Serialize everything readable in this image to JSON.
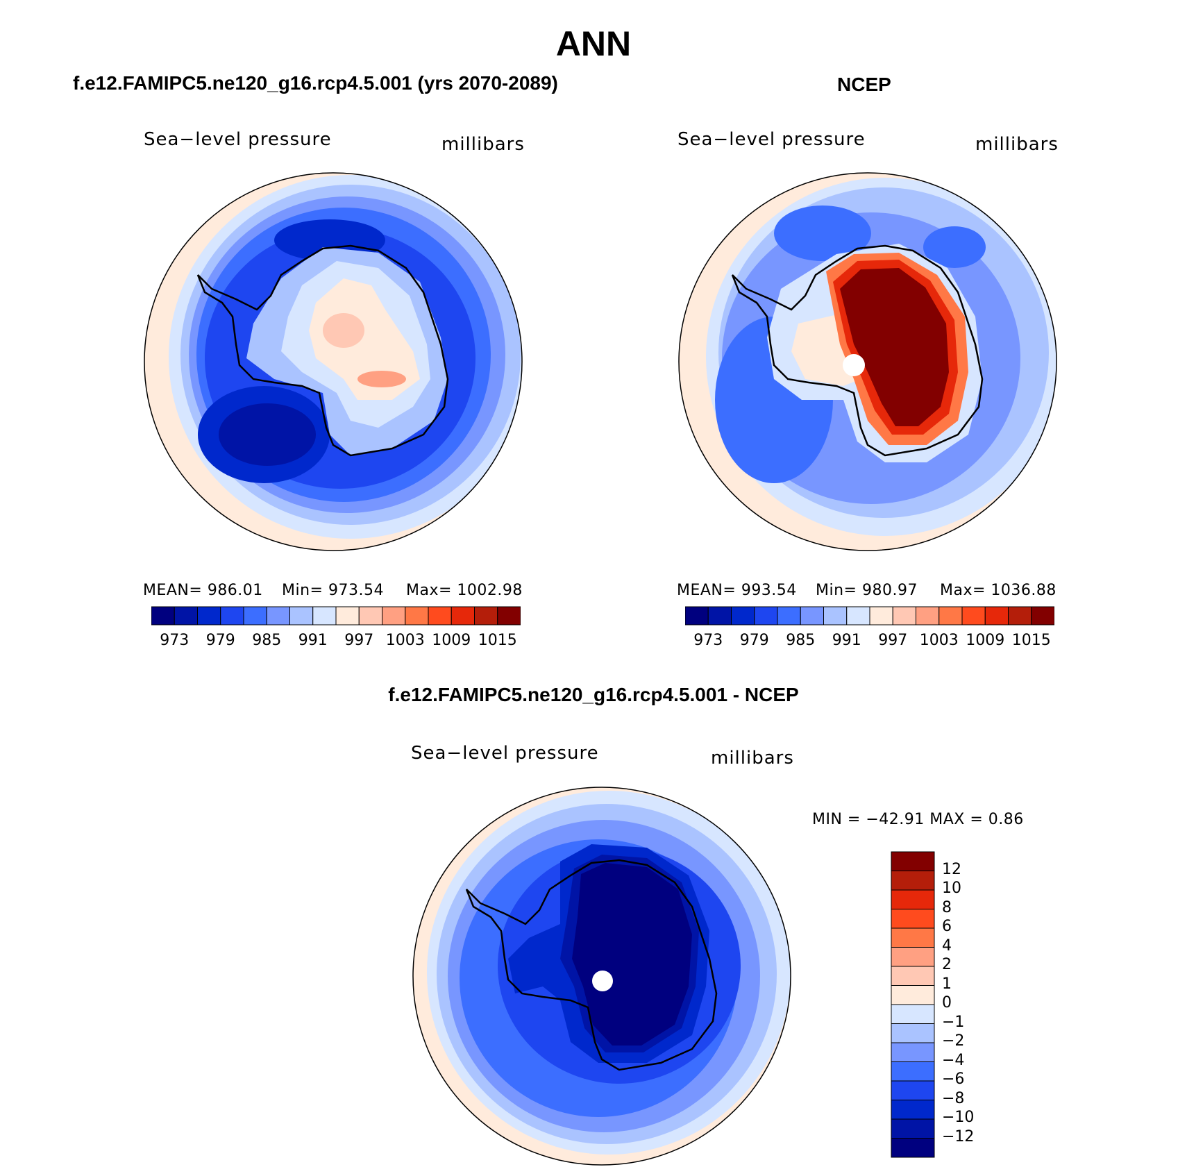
{
  "title": "ANN",
  "panels": [
    {
      "heading": "f.e12.FAMIPC5.ne120_g16.rcp4.5.001 (yrs 2070-2089)",
      "variable": "Sea−level pressure",
      "units": "millibars",
      "stats": {
        "mean": "MEAN= 986.01",
        "min": "Min= 973.54",
        "max": "Max= 1002.98"
      }
    },
    {
      "heading": "NCEP",
      "variable": "Sea−level pressure",
      "units": "millibars",
      "stats": {
        "mean": "MEAN= 993.54",
        "min": "Min= 980.97",
        "max": "Max= 1036.88"
      }
    },
    {
      "heading": "f.e12.FAMIPC5.ne120_g16.rcp4.5.001 - NCEP",
      "variable": "Sea−level pressure",
      "units": "millibars",
      "stats": {
        "minmax": "MIN = −42.91  MAX =    0.86"
      }
    }
  ],
  "abs_colorbar": {
    "colors": [
      "#00007f",
      "#0014a6",
      "#0028cc",
      "#1e46f0",
      "#3c6eff",
      "#7896ff",
      "#aac3ff",
      "#d7e6ff",
      "#ffebdc",
      "#ffc8b4",
      "#ffa082",
      "#ff7846",
      "#ff4b1e",
      "#e6280a",
      "#b41e0a",
      "#820000"
    ],
    "ticks": [
      "973",
      "979",
      "985",
      "991",
      "997",
      "1003",
      "1009",
      "1015"
    ]
  },
  "diff_colorbar": {
    "colors": [
      "#00007f",
      "#0014a6",
      "#0028cc",
      "#1e46f0",
      "#3c6eff",
      "#7896ff",
      "#aac3ff",
      "#d7e6ff",
      "#ffebdc",
      "#ffc8b4",
      "#ffa082",
      "#ff7846",
      "#ff4b1e",
      "#e6280a",
      "#b41e0a",
      "#820000"
    ],
    "ticks": [
      "12",
      "10",
      "8",
      "6",
      "4",
      "2",
      "1",
      "0",
      "−1",
      "−2",
      "−4",
      "−6",
      "−8",
      "−10",
      "−12"
    ]
  }
}
